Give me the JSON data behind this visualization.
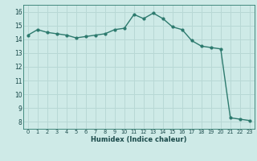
{
  "x": [
    0,
    1,
    2,
    3,
    4,
    5,
    6,
    7,
    8,
    9,
    10,
    11,
    12,
    13,
    14,
    15,
    16,
    17,
    18,
    19,
    20,
    21,
    22,
    23
  ],
  "y": [
    14.3,
    14.7,
    14.5,
    14.4,
    14.3,
    14.1,
    14.2,
    14.3,
    14.4,
    14.7,
    14.8,
    15.8,
    15.5,
    15.9,
    15.5,
    14.9,
    14.7,
    13.9,
    13.5,
    13.4,
    13.3,
    8.3,
    8.2,
    8.1
  ],
  "xlabel": "Humidex (Indice chaleur)",
  "ylabel": "",
  "xlim": [
    -0.5,
    23.5
  ],
  "ylim": [
    7.5,
    16.5
  ],
  "yticks": [
    8,
    9,
    10,
    11,
    12,
    13,
    14,
    15,
    16
  ],
  "xticks": [
    0,
    1,
    2,
    3,
    4,
    5,
    6,
    7,
    8,
    9,
    10,
    11,
    12,
    13,
    14,
    15,
    16,
    17,
    18,
    19,
    20,
    21,
    22,
    23
  ],
  "line_color": "#2d7a6e",
  "bg_color": "#ceeae7",
  "grid_color": "#b8d8d5",
  "label_color": "#1a4a4a",
  "tick_color": "#1a4a4a"
}
